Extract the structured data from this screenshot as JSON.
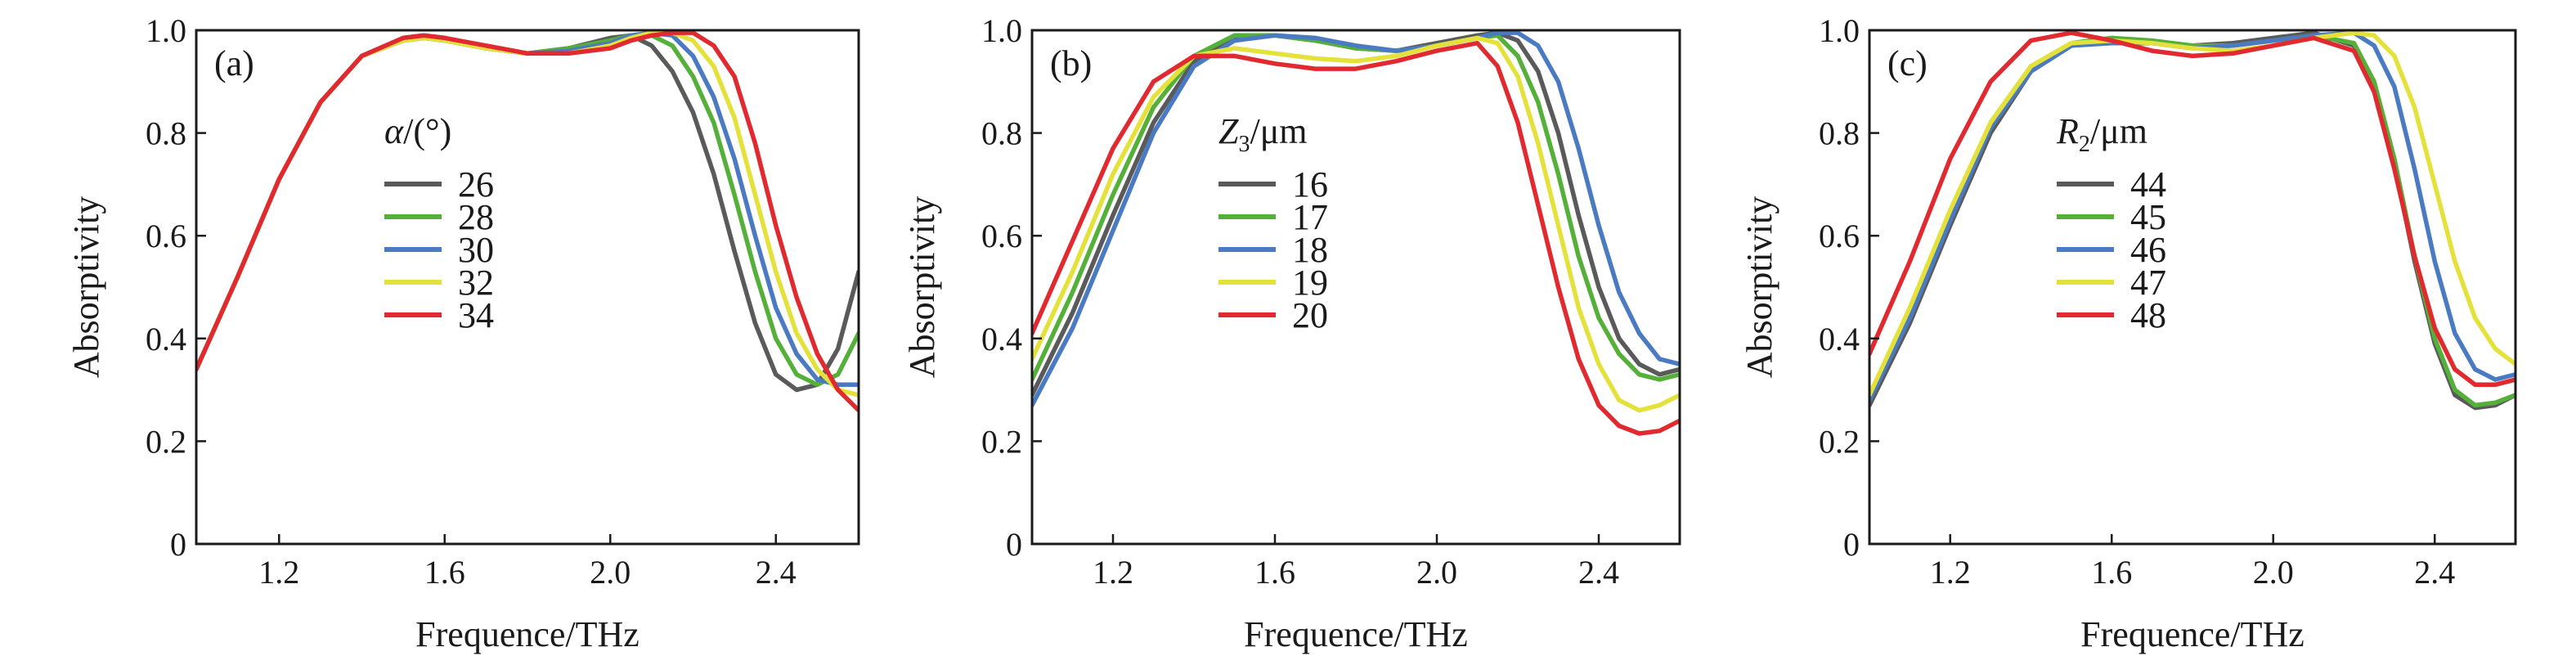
{
  "colors": {
    "gray": "#5a5a5a",
    "green": "#55b03a",
    "blue": "#4a7bc2",
    "yellow": "#e4e23a",
    "red": "#e02a30"
  },
  "chart_data": [
    {
      "type": "line",
      "panel_label": "(a)",
      "xlabel": "Frequence/THz",
      "ylabel": "Absorptivity",
      "xlim": [
        1.0,
        2.6
      ],
      "ylim": [
        0,
        1.0
      ],
      "xticks": [
        "1.2",
        "1.6",
        "2.0",
        "2.4"
      ],
      "yticks": [
        "0",
        "0.2",
        "0.4",
        "0.6",
        "0.8",
        "1.0"
      ],
      "legend_title": {
        "symbol": "α",
        "unit": "/(°)"
      },
      "legend_position": "upper-center",
      "series": [
        {
          "name": "26",
          "color": "gray",
          "x": [
            1.0,
            1.1,
            1.2,
            1.3,
            1.4,
            1.5,
            1.55,
            1.6,
            1.7,
            1.8,
            1.9,
            2.0,
            2.05,
            2.1,
            2.15,
            2.2,
            2.25,
            2.3,
            2.35,
            2.4,
            2.45,
            2.5,
            2.55,
            2.6
          ],
          "y": [
            0.34,
            0.52,
            0.71,
            0.86,
            0.95,
            0.985,
            0.99,
            0.985,
            0.965,
            0.955,
            0.965,
            0.985,
            0.99,
            0.97,
            0.92,
            0.84,
            0.72,
            0.57,
            0.43,
            0.33,
            0.3,
            0.31,
            0.38,
            0.53
          ]
        },
        {
          "name": "28",
          "color": "green",
          "x": [
            1.0,
            1.1,
            1.2,
            1.3,
            1.4,
            1.5,
            1.55,
            1.6,
            1.7,
            1.8,
            1.9,
            2.0,
            2.05,
            2.1,
            2.15,
            2.2,
            2.25,
            2.3,
            2.35,
            2.4,
            2.45,
            2.5,
            2.55,
            2.6
          ],
          "y": [
            0.34,
            0.52,
            0.71,
            0.86,
            0.95,
            0.98,
            0.985,
            0.98,
            0.965,
            0.955,
            0.965,
            0.98,
            0.99,
            0.99,
            0.97,
            0.91,
            0.82,
            0.68,
            0.53,
            0.4,
            0.33,
            0.31,
            0.33,
            0.41
          ]
        },
        {
          "name": "30",
          "color": "blue",
          "x": [
            1.0,
            1.1,
            1.2,
            1.3,
            1.4,
            1.5,
            1.55,
            1.6,
            1.7,
            1.8,
            1.9,
            2.0,
            2.05,
            2.1,
            2.15,
            2.2,
            2.25,
            2.3,
            2.35,
            2.4,
            2.45,
            2.5,
            2.55,
            2.6
          ],
          "y": [
            0.34,
            0.52,
            0.71,
            0.86,
            0.95,
            0.98,
            0.985,
            0.98,
            0.965,
            0.955,
            0.96,
            0.975,
            0.99,
            0.995,
            0.99,
            0.95,
            0.87,
            0.75,
            0.6,
            0.46,
            0.37,
            0.32,
            0.31,
            0.31
          ]
        },
        {
          "name": "32",
          "color": "yellow",
          "x": [
            1.0,
            1.1,
            1.2,
            1.3,
            1.4,
            1.5,
            1.55,
            1.6,
            1.7,
            1.8,
            1.9,
            2.0,
            2.05,
            2.1,
            2.15,
            2.2,
            2.25,
            2.3,
            2.35,
            2.4,
            2.45,
            2.5,
            2.55,
            2.6
          ],
          "y": [
            0.34,
            0.52,
            0.71,
            0.86,
            0.95,
            0.98,
            0.985,
            0.98,
            0.965,
            0.955,
            0.955,
            0.97,
            0.985,
            0.995,
            0.995,
            0.98,
            0.93,
            0.83,
            0.68,
            0.53,
            0.41,
            0.34,
            0.3,
            0.29
          ]
        },
        {
          "name": "34",
          "color": "red",
          "x": [
            1.0,
            1.1,
            1.2,
            1.3,
            1.4,
            1.5,
            1.55,
            1.6,
            1.7,
            1.8,
            1.9,
            2.0,
            2.05,
            2.1,
            2.15,
            2.2,
            2.25,
            2.3,
            2.35,
            2.4,
            2.45,
            2.5,
            2.55,
            2.6
          ],
          "y": [
            0.34,
            0.52,
            0.71,
            0.86,
            0.95,
            0.985,
            0.99,
            0.985,
            0.97,
            0.955,
            0.955,
            0.965,
            0.98,
            0.99,
            0.995,
            0.995,
            0.97,
            0.91,
            0.78,
            0.62,
            0.48,
            0.37,
            0.3,
            0.26
          ]
        }
      ]
    },
    {
      "type": "line",
      "panel_label": "(b)",
      "xlabel": "Frequence/THz",
      "ylabel": "Absorptivity",
      "xlim": [
        1.0,
        2.6
      ],
      "ylim": [
        0,
        1.0
      ],
      "xticks": [
        "1.2",
        "1.6",
        "2.0",
        "2.4"
      ],
      "yticks": [
        "0",
        "0.2",
        "0.4",
        "0.6",
        "0.8",
        "1.0"
      ],
      "legend_title": {
        "symbol": "Z",
        "subscript": "3",
        "unit": "/μm"
      },
      "legend_position": "upper-center",
      "series": [
        {
          "name": "16",
          "color": "gray",
          "x": [
            1.0,
            1.1,
            1.2,
            1.3,
            1.4,
            1.5,
            1.6,
            1.7,
            1.8,
            1.9,
            2.0,
            2.1,
            2.15,
            2.2,
            2.25,
            2.3,
            2.35,
            2.4,
            2.45,
            2.5,
            2.55,
            2.6
          ],
          "y": [
            0.29,
            0.45,
            0.64,
            0.82,
            0.94,
            0.985,
            0.99,
            0.98,
            0.965,
            0.96,
            0.975,
            0.99,
            0.995,
            0.98,
            0.92,
            0.8,
            0.64,
            0.5,
            0.4,
            0.35,
            0.33,
            0.34
          ]
        },
        {
          "name": "17",
          "color": "green",
          "x": [
            1.0,
            1.1,
            1.2,
            1.3,
            1.4,
            1.5,
            1.6,
            1.7,
            1.8,
            1.9,
            2.0,
            2.1,
            2.15,
            2.2,
            2.25,
            2.3,
            2.35,
            2.4,
            2.45,
            2.5,
            2.55,
            2.6
          ],
          "y": [
            0.32,
            0.49,
            0.68,
            0.85,
            0.95,
            0.99,
            0.99,
            0.98,
            0.965,
            0.96,
            0.97,
            0.985,
            0.99,
            0.95,
            0.86,
            0.72,
            0.56,
            0.44,
            0.37,
            0.33,
            0.32,
            0.33
          ]
        },
        {
          "name": "18",
          "color": "blue",
          "x": [
            1.0,
            1.1,
            1.2,
            1.3,
            1.4,
            1.5,
            1.6,
            1.7,
            1.8,
            1.9,
            2.0,
            2.1,
            2.15,
            2.2,
            2.25,
            2.3,
            2.35,
            2.4,
            2.45,
            2.5,
            2.55,
            2.6
          ],
          "y": [
            0.27,
            0.42,
            0.61,
            0.8,
            0.93,
            0.98,
            0.99,
            0.985,
            0.97,
            0.96,
            0.97,
            0.985,
            0.995,
            0.995,
            0.97,
            0.9,
            0.77,
            0.62,
            0.49,
            0.41,
            0.36,
            0.35
          ]
        },
        {
          "name": "19",
          "color": "yellow",
          "x": [
            1.0,
            1.1,
            1.2,
            1.3,
            1.4,
            1.5,
            1.6,
            1.7,
            1.8,
            1.9,
            2.0,
            2.1,
            2.15,
            2.2,
            2.25,
            2.3,
            2.35,
            2.4,
            2.45,
            2.5,
            2.55,
            2.6
          ],
          "y": [
            0.36,
            0.53,
            0.72,
            0.87,
            0.95,
            0.965,
            0.955,
            0.945,
            0.94,
            0.95,
            0.97,
            0.985,
            0.975,
            0.91,
            0.78,
            0.62,
            0.46,
            0.35,
            0.28,
            0.26,
            0.27,
            0.29
          ]
        },
        {
          "name": "20",
          "color": "red",
          "x": [
            1.0,
            1.1,
            1.2,
            1.3,
            1.4,
            1.5,
            1.6,
            1.7,
            1.8,
            1.9,
            2.0,
            2.1,
            2.15,
            2.2,
            2.25,
            2.3,
            2.35,
            2.4,
            2.45,
            2.5,
            2.55,
            2.6
          ],
          "y": [
            0.41,
            0.59,
            0.77,
            0.9,
            0.95,
            0.95,
            0.935,
            0.925,
            0.925,
            0.94,
            0.96,
            0.975,
            0.93,
            0.82,
            0.66,
            0.5,
            0.36,
            0.27,
            0.23,
            0.215,
            0.22,
            0.24
          ]
        }
      ]
    },
    {
      "type": "line",
      "panel_label": "(c)",
      "xlabel": "Frequence/THz",
      "ylabel": "Absorptivity",
      "xlim": [
        1.0,
        2.6
      ],
      "ylim": [
        0,
        1.0
      ],
      "xticks": [
        "1.2",
        "1.6",
        "2.0",
        "2.4"
      ],
      "yticks": [
        "0",
        "0.2",
        "0.4",
        "0.6",
        "0.8",
        "1.0"
      ],
      "legend_title": {
        "symbol": "R",
        "subscript": "2",
        "unit": "/μm"
      },
      "legend_position": "upper-center",
      "series": [
        {
          "name": "44",
          "color": "gray",
          "x": [
            1.0,
            1.1,
            1.2,
            1.3,
            1.4,
            1.5,
            1.6,
            1.7,
            1.8,
            1.9,
            2.0,
            2.1,
            2.2,
            2.25,
            2.3,
            2.35,
            2.4,
            2.45,
            2.5,
            2.55,
            2.6
          ],
          "y": [
            0.27,
            0.43,
            0.62,
            0.8,
            0.92,
            0.97,
            0.98,
            0.975,
            0.97,
            0.975,
            0.985,
            0.995,
            0.97,
            0.89,
            0.74,
            0.55,
            0.39,
            0.29,
            0.265,
            0.27,
            0.29
          ]
        },
        {
          "name": "45",
          "color": "green",
          "x": [
            1.0,
            1.1,
            1.2,
            1.3,
            1.4,
            1.5,
            1.6,
            1.7,
            1.8,
            1.9,
            2.0,
            2.1,
            2.2,
            2.25,
            2.3,
            2.35,
            2.4,
            2.45,
            2.5,
            2.55,
            2.6
          ],
          "y": [
            0.29,
            0.45,
            0.64,
            0.82,
            0.93,
            0.975,
            0.985,
            0.98,
            0.97,
            0.97,
            0.98,
            0.99,
            0.975,
            0.9,
            0.75,
            0.56,
            0.4,
            0.3,
            0.27,
            0.275,
            0.29
          ]
        },
        {
          "name": "46",
          "color": "blue",
          "x": [
            1.0,
            1.1,
            1.2,
            1.3,
            1.4,
            1.5,
            1.6,
            1.7,
            1.8,
            1.9,
            2.0,
            2.1,
            2.2,
            2.25,
            2.3,
            2.35,
            2.4,
            2.45,
            2.5,
            2.55,
            2.6
          ],
          "y": [
            0.28,
            0.44,
            0.63,
            0.81,
            0.92,
            0.97,
            0.975,
            0.975,
            0.965,
            0.97,
            0.98,
            0.99,
            0.995,
            0.97,
            0.89,
            0.73,
            0.55,
            0.41,
            0.34,
            0.32,
            0.33
          ]
        },
        {
          "name": "47",
          "color": "yellow",
          "x": [
            1.0,
            1.1,
            1.2,
            1.3,
            1.4,
            1.5,
            1.6,
            1.7,
            1.8,
            1.9,
            2.0,
            2.1,
            2.2,
            2.25,
            2.3,
            2.35,
            2.4,
            2.45,
            2.5,
            2.55,
            2.6
          ],
          "y": [
            0.29,
            0.46,
            0.65,
            0.82,
            0.93,
            0.975,
            0.98,
            0.975,
            0.965,
            0.96,
            0.97,
            0.985,
            0.995,
            0.99,
            0.95,
            0.85,
            0.7,
            0.55,
            0.44,
            0.38,
            0.35
          ]
        },
        {
          "name": "48",
          "color": "red",
          "x": [
            1.0,
            1.1,
            1.2,
            1.3,
            1.4,
            1.5,
            1.6,
            1.7,
            1.8,
            1.9,
            2.0,
            2.1,
            2.2,
            2.25,
            2.3,
            2.35,
            2.4,
            2.45,
            2.5,
            2.55,
            2.6
          ],
          "y": [
            0.37,
            0.55,
            0.75,
            0.9,
            0.98,
            0.995,
            0.98,
            0.96,
            0.95,
            0.955,
            0.97,
            0.985,
            0.96,
            0.88,
            0.73,
            0.56,
            0.42,
            0.34,
            0.31,
            0.31,
            0.32
          ]
        }
      ]
    }
  ]
}
